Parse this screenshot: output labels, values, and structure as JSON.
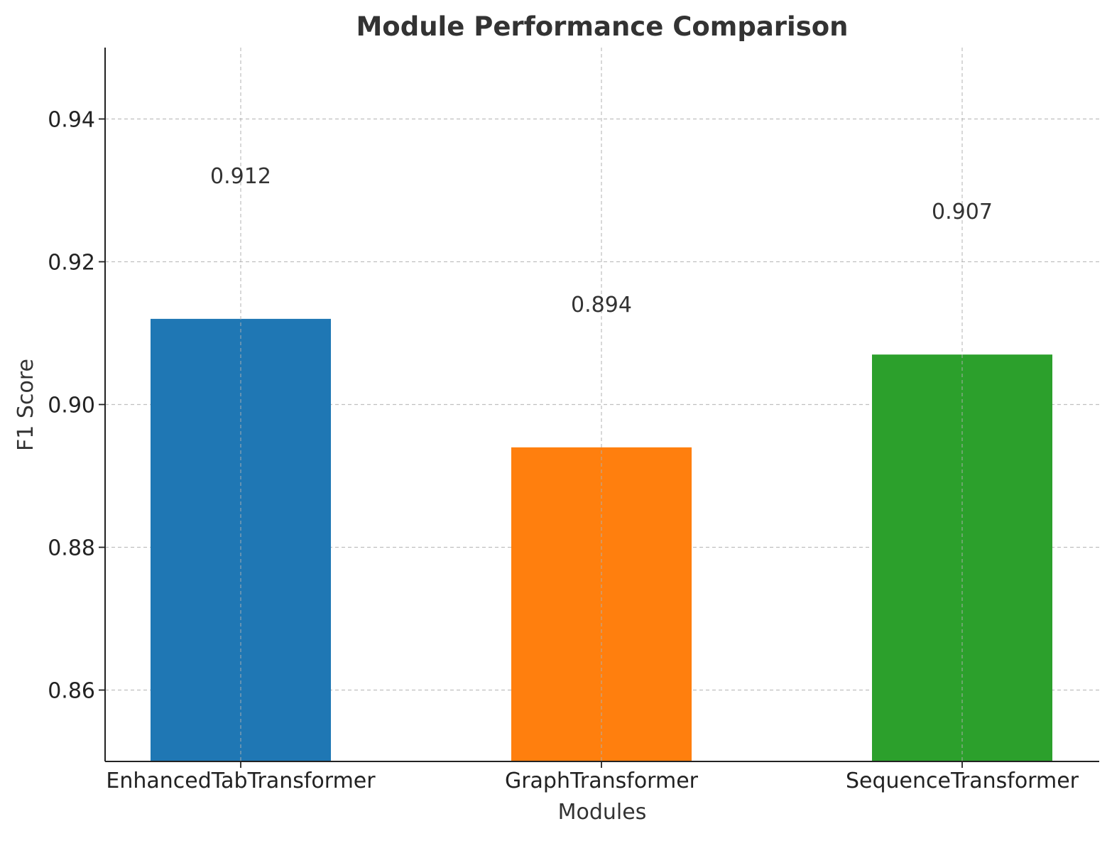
{
  "chart_data": {
    "type": "bar",
    "title": "Module Performance Comparison",
    "xlabel": "Modules",
    "ylabel": "F1 Score",
    "categories": [
      "EnhancedTabTransformer",
      "GraphTransformer",
      "SequenceTransformer"
    ],
    "values": [
      0.912,
      0.894,
      0.907
    ],
    "value_labels": [
      "0.912",
      "0.894",
      "0.907"
    ],
    "bar_colors": [
      "#1f77b4",
      "#ff7f0e",
      "#2ca02c"
    ],
    "ylim": [
      0.85,
      0.95
    ],
    "yticks": [
      0.86,
      0.88,
      0.9,
      0.92,
      0.94
    ],
    "ytick_labels": [
      "0.86",
      "0.88",
      "0.90",
      "0.92",
      "0.94"
    ],
    "grid": true,
    "legend": "none"
  }
}
